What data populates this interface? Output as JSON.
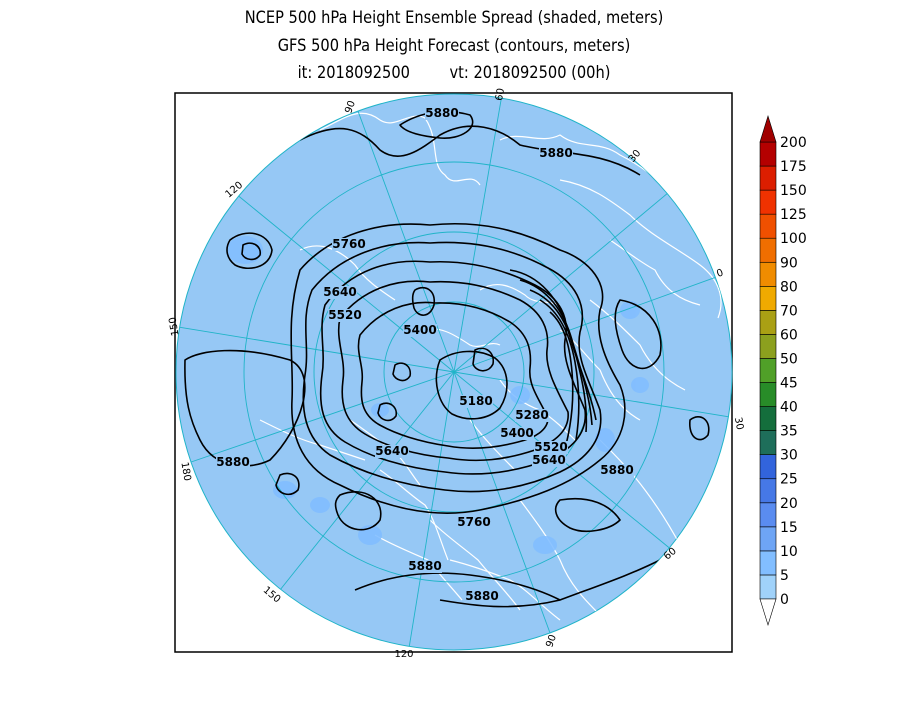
{
  "title": {
    "line1": "NCEP 500 hPa Height Ensemble Spread (shaded, meters)",
    "line2": "GFS 500 hPa Height Forecast (contours, meters)",
    "init_label": "it: 2018092500",
    "valid_label": "vt: 2018092500 (00h)"
  },
  "longitude_labels": [
    {
      "text": "60"
    },
    {
      "text": "30"
    },
    {
      "text": "0"
    },
    {
      "text": "30"
    },
    {
      "text": "60"
    },
    {
      "text": "90"
    },
    {
      "text": "120"
    },
    {
      "text": "150"
    },
    {
      "text": "180"
    },
    {
      "text": "150"
    },
    {
      "text": "120"
    },
    {
      "text": "90"
    }
  ],
  "contour_labels": [
    {
      "text": "5880"
    },
    {
      "text": "5880"
    },
    {
      "text": "5760"
    },
    {
      "text": "5640"
    },
    {
      "text": "5520"
    },
    {
      "text": "5400"
    },
    {
      "text": "5180"
    },
    {
      "text": "5280"
    },
    {
      "text": "5400"
    },
    {
      "text": "5520"
    },
    {
      "text": "5640"
    },
    {
      "text": "5640"
    },
    {
      "text": "5880"
    },
    {
      "text": "5880"
    },
    {
      "text": "5760"
    },
    {
      "text": "5880"
    },
    {
      "text": "5880"
    }
  ],
  "colorbar": {
    "levels": [
      "0",
      "5",
      "10",
      "15",
      "20",
      "25",
      "30",
      "35",
      "40",
      "45",
      "50",
      "60",
      "70",
      "80",
      "90",
      "100",
      "125",
      "150",
      "175",
      "200"
    ],
    "colors": [
      "#a0d2fa",
      "#82beff",
      "#6ea5f5",
      "#5a8cf0",
      "#4678e6",
      "#3264dc",
      "#1e6e5a",
      "#146e3c",
      "#288c28",
      "#50a028",
      "#8ca01e",
      "#aaa014",
      "#f0aa00",
      "#f08c00",
      "#f06e00",
      "#f05000",
      "#f03200",
      "#dc1e00",
      "#b40000"
    ]
  },
  "colors": {
    "map_background": "#96c8f5",
    "land_outline": "#ffffff",
    "graticule": "#20b4c8",
    "contour": "#000000"
  }
}
